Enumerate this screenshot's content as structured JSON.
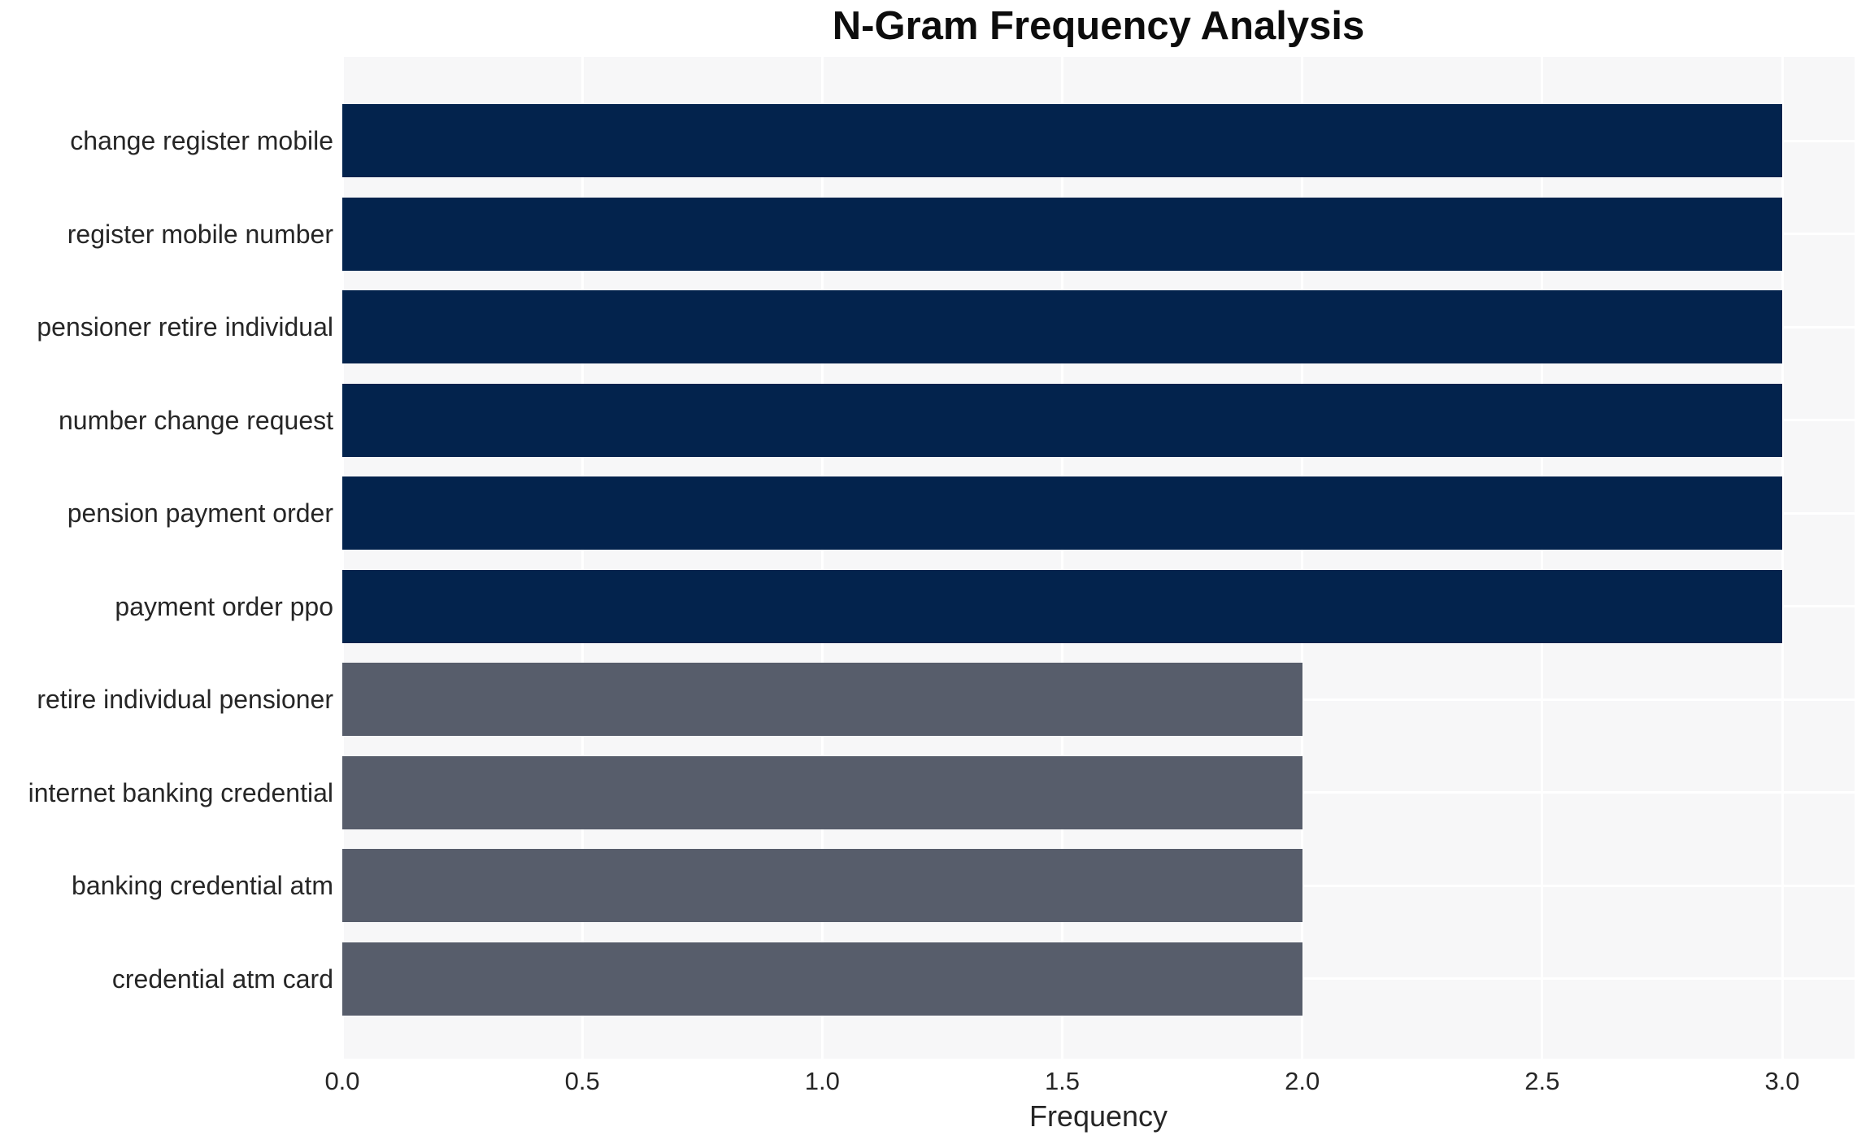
{
  "chart_data": {
    "type": "bar",
    "orientation": "horizontal",
    "title": "N-Gram Frequency Analysis",
    "xlabel": "Frequency",
    "ylabel": "",
    "categories": [
      "change register mobile",
      "register mobile number",
      "pensioner retire individual",
      "number change request",
      "pension payment order",
      "payment order ppo",
      "retire individual pensioner",
      "internet banking credential",
      "banking credential atm",
      "credential atm card"
    ],
    "values": [
      3,
      3,
      3,
      3,
      3,
      3,
      2,
      2,
      2,
      2
    ],
    "xticks": [
      0.0,
      0.5,
      1.0,
      1.5,
      2.0,
      2.5,
      3.0
    ],
    "xtick_labels": [
      "0.0",
      "0.5",
      "1.0",
      "1.5",
      "2.0",
      "2.5",
      "3.0"
    ],
    "xlim": [
      0,
      3.15
    ],
    "grid": true,
    "legend": "none",
    "colors": {
      "bar_high_freq": "#03234d",
      "bar_low_freq": "#575d6b",
      "high_freq_threshold": 3,
      "plot_background": "#f7f7f8",
      "gridline": "#ffffff",
      "text": "#262626"
    }
  }
}
